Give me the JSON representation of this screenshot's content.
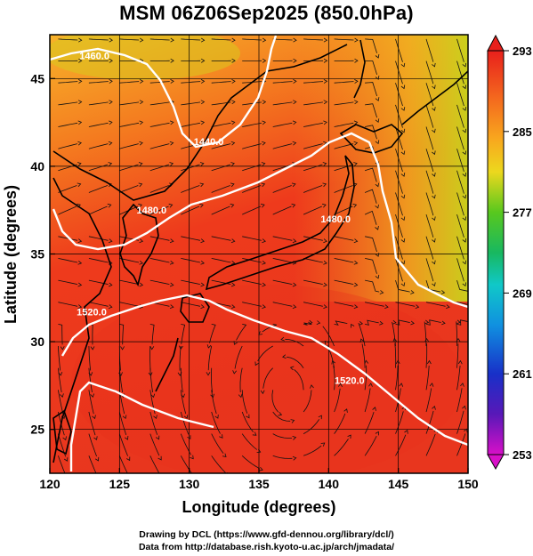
{
  "title": "MSM 06Z06Sep2025 (850.0hPa)",
  "x_axis": {
    "label": "Longitude (degrees)",
    "range": [
      120,
      150
    ],
    "ticks": [
      "120",
      "125",
      "130",
      "135",
      "140",
      "145",
      "150"
    ]
  },
  "y_axis": {
    "label": "Latitude  (degrees)",
    "range": [
      22.5,
      47.5
    ],
    "ticks": [
      "25",
      "30",
      "35",
      "40",
      "45"
    ]
  },
  "colorbar": {
    "range": [
      253,
      293
    ],
    "ticks": [
      "293",
      "285",
      "277",
      "269",
      "261",
      "253"
    ]
  },
  "contour_labels": [
    {
      "text": "1460.0",
      "lon": 123.2,
      "lat": 46.1
    },
    {
      "text": "1440.0",
      "lon": 131.4,
      "lat": 41.2
    },
    {
      "text": "1480.0",
      "lon": 127.3,
      "lat": 37.3
    },
    {
      "text": "1480.0",
      "lon": 140.5,
      "lat": 36.8
    },
    {
      "text": "1520.0",
      "lon": 123.0,
      "lat": 31.5
    },
    {
      "text": "1520.0",
      "lon": 141.5,
      "lat": 27.6
    }
  ],
  "credits": [
    "Drawing by DCL (https://www.gfd-dennou.org/library/dcl/)",
    "Data from http://database.rish.kyoto-u.ac.jp/arch/jmadata/"
  ]
}
